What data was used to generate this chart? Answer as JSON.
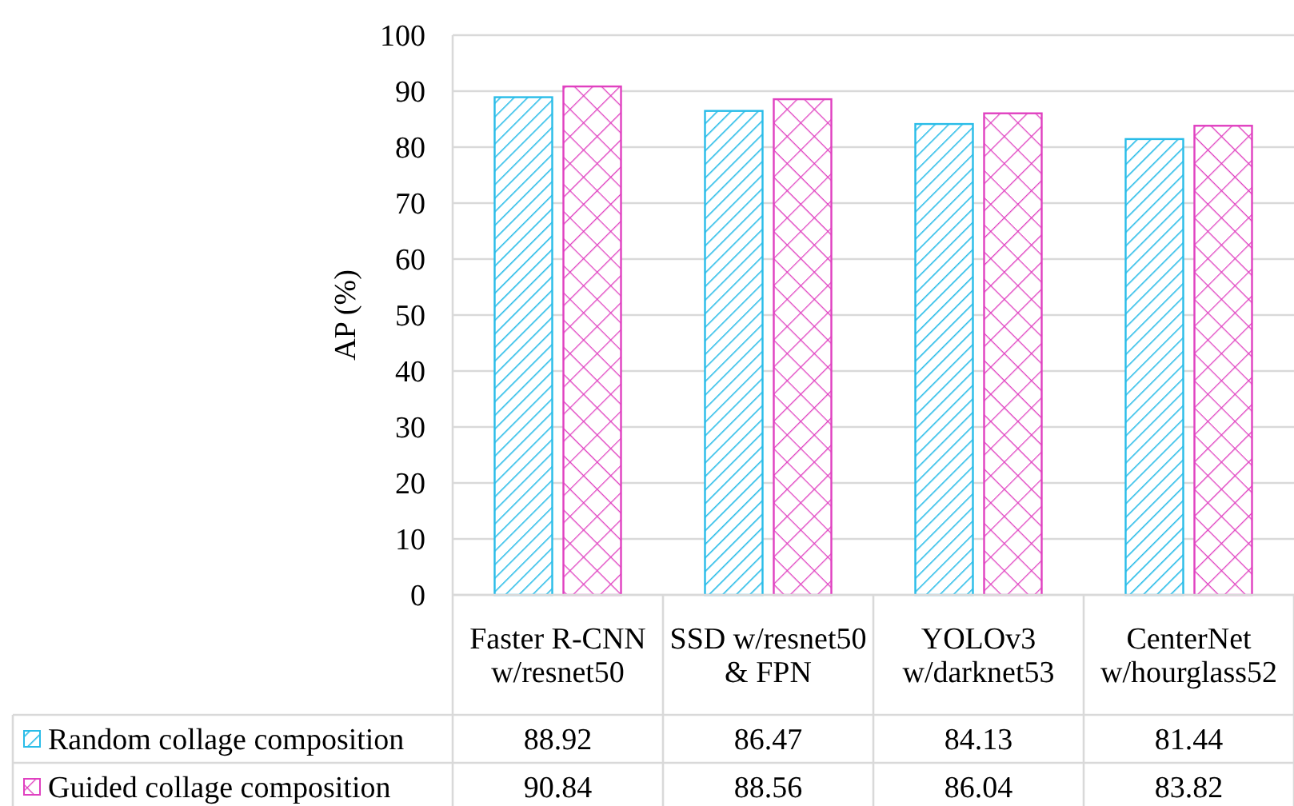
{
  "chart_data": {
    "type": "bar",
    "ylabel": "AP (%)",
    "categories": [
      "Faster R-CNN w/resnet50",
      "SSD w/resnet50 & FPN",
      "YOLOv3 w/darknet53",
      "CenterNet w/hourglass52"
    ],
    "series": [
      {
        "name": "Random collage composition",
        "color": "#29bce8",
        "values": [
          88.92,
          86.47,
          84.13,
          81.44
        ]
      },
      {
        "name": "Guided collage composition",
        "color": "#e040c0",
        "values": [
          90.84,
          88.56,
          86.04,
          83.82
        ]
      }
    ],
    "ylim": [
      0,
      100
    ],
    "yticks": [
      0,
      10,
      20,
      30,
      40,
      50,
      60,
      70,
      80,
      90,
      100
    ],
    "grid": "y",
    "legend": "bottom",
    "data_labels": true
  }
}
